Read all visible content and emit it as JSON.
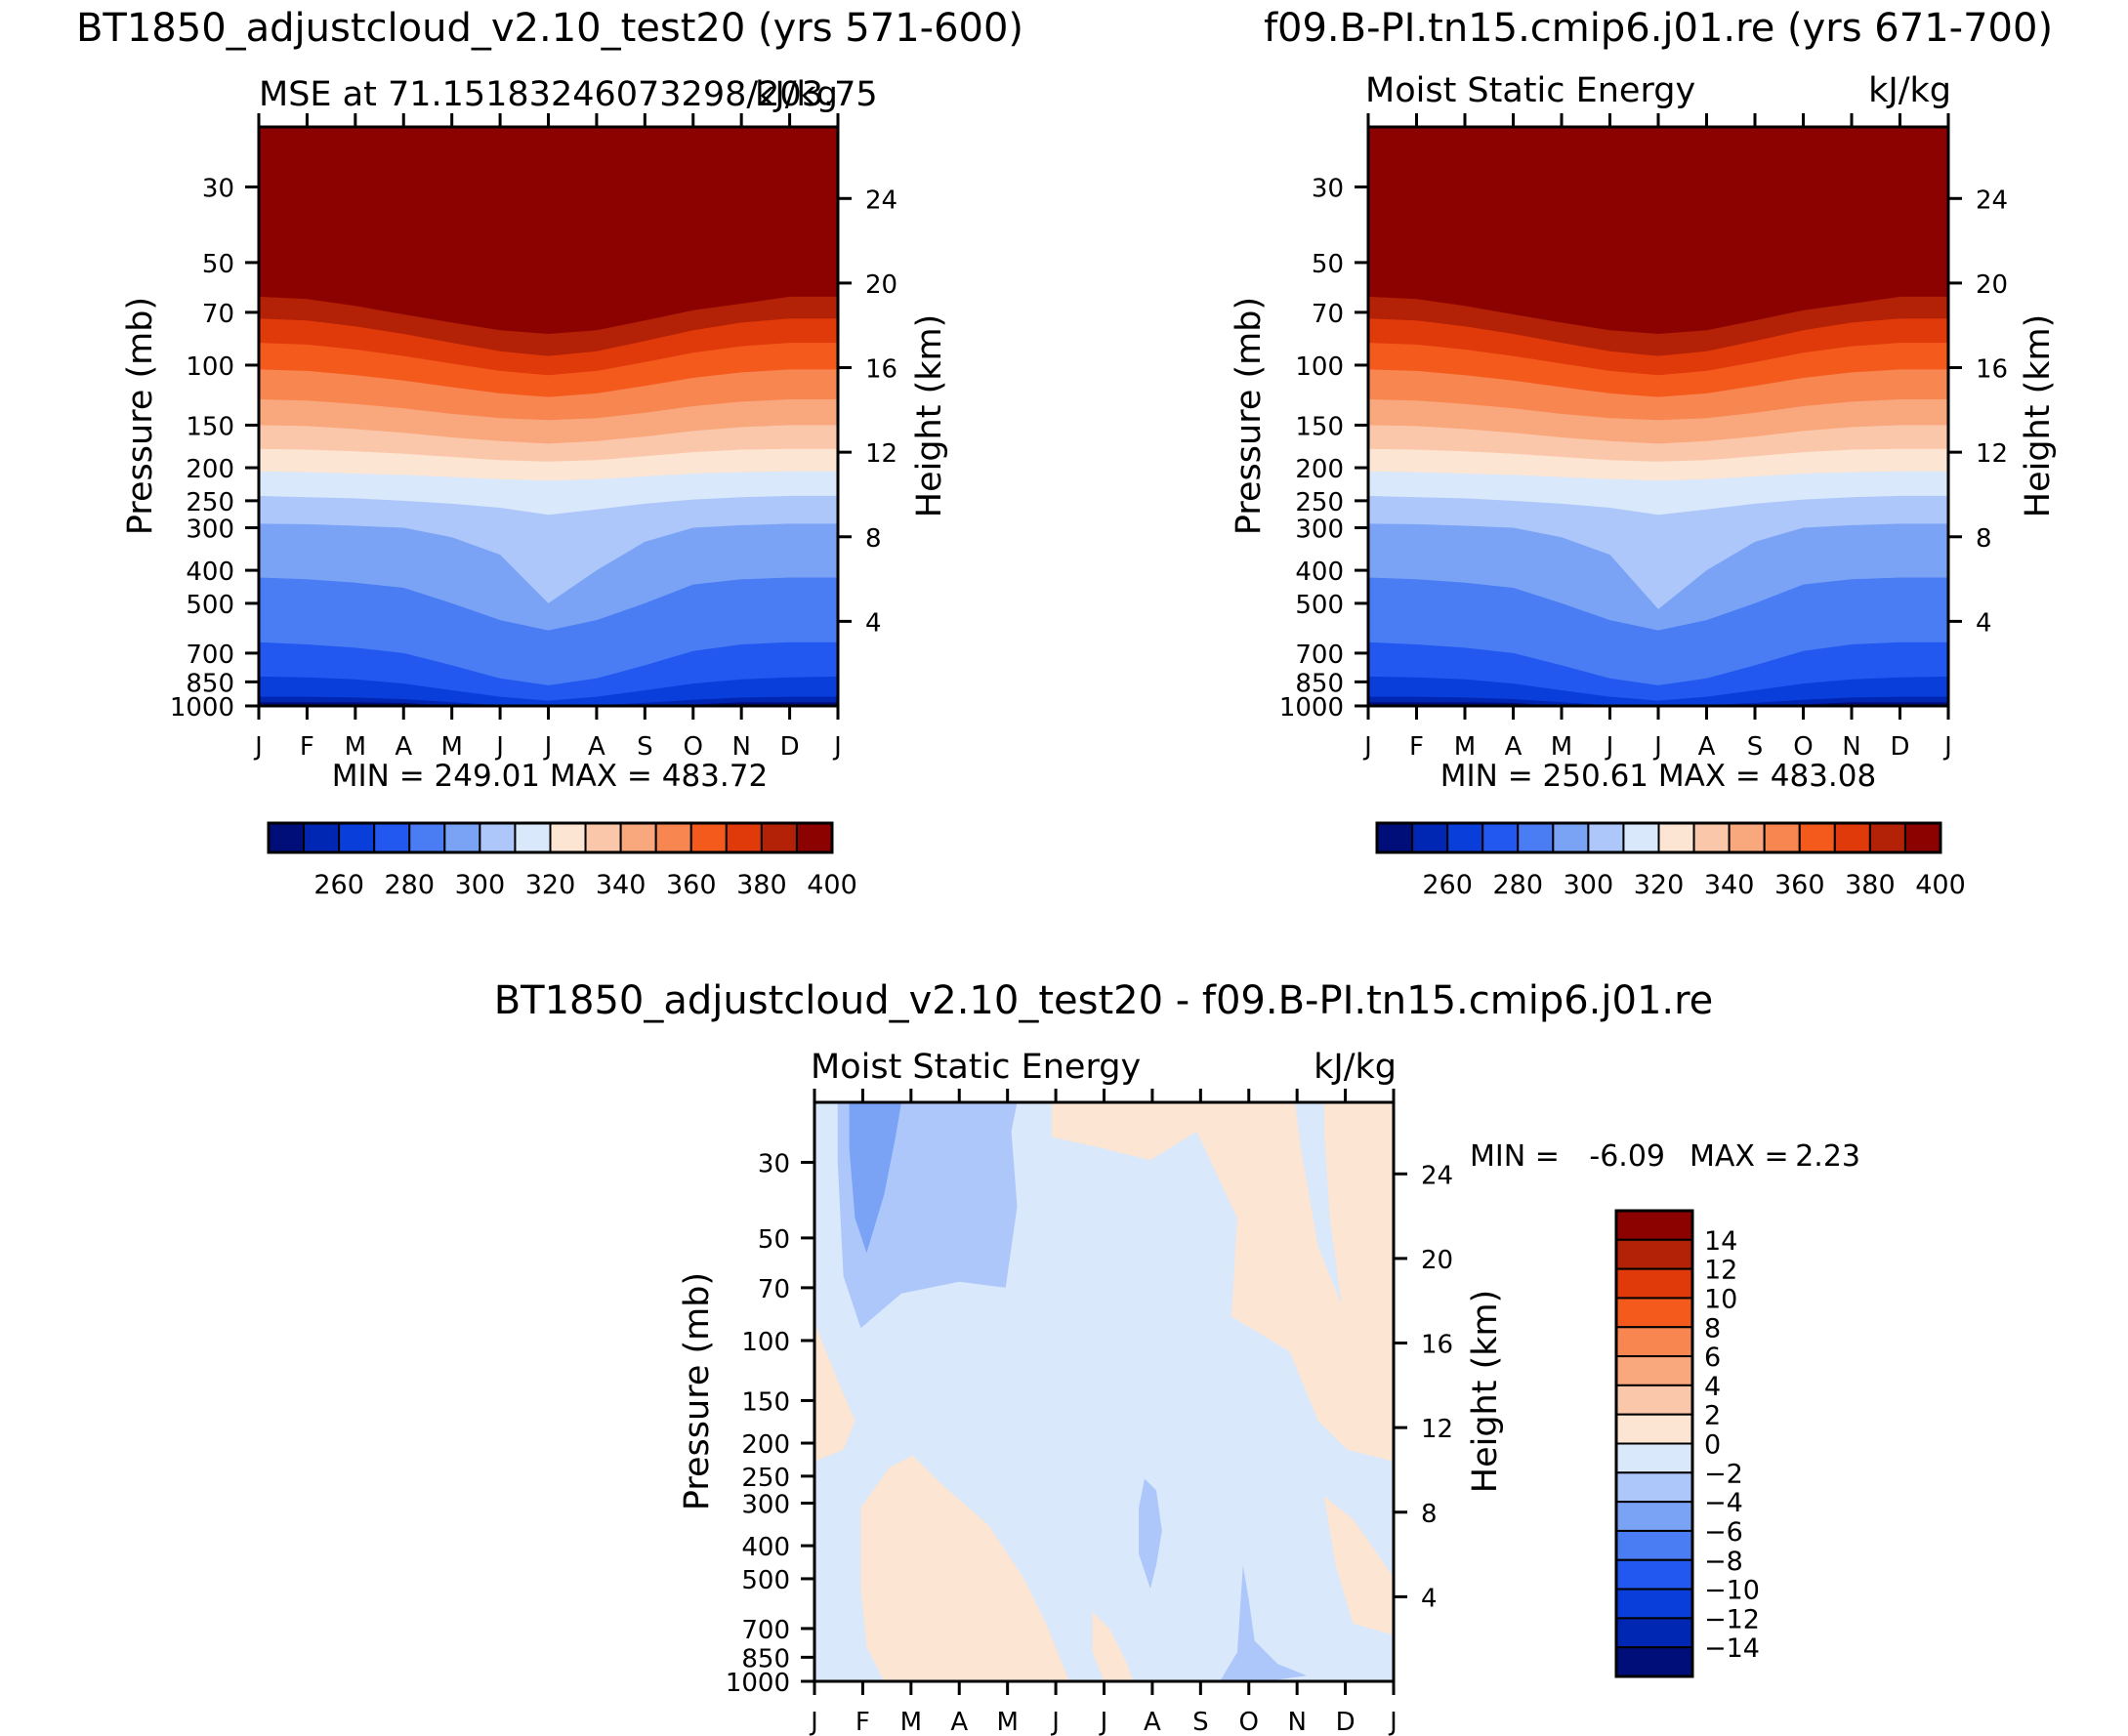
{
  "colors": {
    "mse": [
      "#000e7a",
      "#0026b4",
      "#0a3edb",
      "#2258f0",
      "#4a7df4",
      "#7aa3f6",
      "#adc7fa",
      "#d9e8fa",
      "#fde5d3",
      "#fbc7aa",
      "#f9a77d",
      "#f78651",
      "#f55a1d",
      "#e0390a",
      "#b32106",
      "#8b0200"
    ],
    "diff": [
      "#000e7a",
      "#0026b4",
      "#0a3edb",
      "#2258f0",
      "#4a7df4",
      "#7aa3f6",
      "#adc7fa",
      "#d9e8fa",
      "#fde5d3",
      "#fbc7aa",
      "#f9a77d",
      "#f78651",
      "#f55a1d",
      "#e0390a",
      "#b32106",
      "#8b0200"
    ]
  },
  "chart_data": [
    {
      "id": "top-left",
      "type": "contour",
      "title": "BT1850_adjustcloud_v2.10_test20 (yrs 571-600)",
      "left_label": "MSE at 71.15183246073298/203.75",
      "right_label": "kJ/kg",
      "xlabel": "",
      "ylabel": "Pressure (mb)",
      "y2label": "Height (km)",
      "x_ticks": [
        "J",
        "F",
        "M",
        "A",
        "M",
        "J",
        "J",
        "A",
        "S",
        "O",
        "N",
        "D",
        "J"
      ],
      "pressure_ticks": [
        "30",
        "50",
        "70",
        "100",
        "150",
        "200",
        "250",
        "300",
        "400",
        "500",
        "700",
        "850",
        "1000"
      ],
      "height_ticks": [
        "24",
        "20",
        "16",
        "12",
        "8",
        "4"
      ],
      "ylim_mb": [
        20,
        1000
      ],
      "stats": "MIN = 249.01 MAX = 483.72",
      "colorbar_labels": [
        "260",
        "280",
        "300",
        "320",
        "340",
        "360",
        "380",
        "400"
      ],
      "contour_levels": [
        250,
        260,
        270,
        280,
        290,
        300,
        310,
        320,
        330,
        340,
        350,
        360,
        370,
        380,
        390,
        400
      ],
      "boundaries_mb": {
        "months": [
          0,
          1,
          2,
          3,
          4,
          5,
          6,
          7,
          8,
          9,
          10,
          11,
          12
        ],
        "b1": [
          975,
          975,
          975,
          980,
          1000,
          1000,
          1000,
          1000,
          1000,
          990,
          975,
          975,
          975
        ],
        "b2": [
          940,
          940,
          945,
          955,
          975,
          995,
          1000,
          995,
          980,
          960,
          945,
          940,
          940
        ],
        "b3": [
          820,
          825,
          835,
          860,
          900,
          940,
          965,
          940,
          900,
          860,
          835,
          825,
          820
        ],
        "b4": [
          650,
          660,
          675,
          700,
          760,
          830,
          870,
          830,
          760,
          690,
          660,
          650,
          650
        ],
        "b5": [
          420,
          425,
          435,
          450,
          500,
          560,
          600,
          560,
          500,
          440,
          425,
          420,
          420
        ],
        "b6": [
          292,
          293,
          296,
          300,
          320,
          360,
          500,
          400,
          330,
          300,
          295,
          292,
          292
        ],
        "b7": [
          242,
          244,
          246,
          250,
          255,
          262,
          275,
          265,
          255,
          248,
          244,
          242,
          242
        ],
        "b8": [
          205,
          206,
          208,
          210,
          213,
          216,
          218,
          216,
          212,
          208,
          206,
          205,
          205
        ],
        "b9": [
          176,
          177,
          179,
          182,
          186,
          190,
          192,
          190,
          185,
          180,
          177,
          176,
          176
        ],
        "b10": [
          150,
          151,
          154,
          158,
          163,
          167,
          170,
          167,
          162,
          156,
          152,
          150,
          150
        ],
        "b11": [
          126,
          127,
          130,
          134,
          139,
          143,
          145,
          143,
          138,
          132,
          128,
          126,
          126
        ],
        "b12": [
          103,
          104,
          107,
          111,
          116,
          121,
          124,
          121,
          115,
          109,
          105,
          103,
          103
        ],
        "b13": [
          86,
          87,
          90,
          94,
          99,
          104,
          107,
          104,
          98,
          92,
          88,
          86,
          86
        ],
        "b14": [
          73,
          74,
          77,
          81,
          86,
          91,
          94,
          91,
          85,
          79,
          75,
          73,
          73
        ],
        "b15": [
          63,
          64,
          67,
          71,
          75,
          79,
          81,
          79,
          74,
          69,
          66,
          63,
          63
        ]
      }
    },
    {
      "id": "top-right",
      "type": "contour",
      "title": "f09.B-PI.tn15.cmip6.j01.re (yrs 671-700)",
      "left_label": "Moist Static Energy",
      "right_label": "kJ/kg",
      "xlabel": "",
      "ylabel": "Pressure (mb)",
      "y2label": "Height (km)",
      "x_ticks": [
        "J",
        "F",
        "M",
        "A",
        "M",
        "J",
        "J",
        "A",
        "S",
        "O",
        "N",
        "D",
        "J"
      ],
      "pressure_ticks": [
        "30",
        "50",
        "70",
        "100",
        "150",
        "200",
        "250",
        "300",
        "400",
        "500",
        "700",
        "850",
        "1000"
      ],
      "height_ticks": [
        "24",
        "20",
        "16",
        "12",
        "8",
        "4"
      ],
      "ylim_mb": [
        20,
        1000
      ],
      "stats": "MIN = 250.61 MAX = 483.08",
      "colorbar_labels": [
        "260",
        "280",
        "300",
        "320",
        "340",
        "360",
        "380",
        "400"
      ],
      "contour_levels": [
        250,
        260,
        270,
        280,
        290,
        300,
        310,
        320,
        330,
        340,
        350,
        360,
        370,
        380,
        390,
        400
      ],
      "boundaries_mb": {
        "months": [
          0,
          1,
          2,
          3,
          4,
          5,
          6,
          7,
          8,
          9,
          10,
          11,
          12
        ],
        "b1": [
          975,
          975,
          975,
          980,
          1000,
          1000,
          1000,
          1000,
          1000,
          990,
          975,
          975,
          975
        ],
        "b2": [
          940,
          940,
          945,
          955,
          975,
          995,
          1000,
          995,
          980,
          960,
          945,
          940,
          940
        ],
        "b3": [
          820,
          825,
          835,
          860,
          900,
          940,
          965,
          940,
          900,
          860,
          835,
          825,
          820
        ],
        "b4": [
          650,
          660,
          675,
          700,
          760,
          830,
          870,
          830,
          760,
          690,
          660,
          650,
          650
        ],
        "b5": [
          420,
          425,
          435,
          450,
          500,
          560,
          600,
          560,
          500,
          440,
          425,
          420,
          420
        ],
        "b6": [
          292,
          293,
          296,
          300,
          320,
          360,
          520,
          400,
          330,
          300,
          295,
          292,
          292
        ],
        "b7": [
          242,
          244,
          246,
          250,
          255,
          262,
          275,
          265,
          255,
          248,
          244,
          242,
          242
        ],
        "b8": [
          205,
          206,
          208,
          210,
          213,
          216,
          218,
          216,
          212,
          208,
          206,
          205,
          205
        ],
        "b9": [
          176,
          177,
          179,
          182,
          186,
          190,
          192,
          190,
          185,
          180,
          177,
          176,
          176
        ],
        "b10": [
          150,
          151,
          154,
          158,
          163,
          167,
          170,
          167,
          162,
          156,
          152,
          150,
          150
        ],
        "b11": [
          126,
          127,
          130,
          134,
          139,
          143,
          145,
          143,
          138,
          132,
          128,
          126,
          126
        ],
        "b12": [
          103,
          104,
          107,
          111,
          116,
          121,
          124,
          121,
          115,
          109,
          105,
          103,
          103
        ],
        "b13": [
          86,
          87,
          90,
          94,
          99,
          104,
          107,
          104,
          98,
          92,
          88,
          86,
          86
        ],
        "b14": [
          73,
          74,
          77,
          81,
          86,
          91,
          94,
          91,
          85,
          79,
          75,
          73,
          73
        ],
        "b15": [
          63,
          64,
          67,
          71,
          75,
          79,
          81,
          79,
          74,
          69,
          66,
          63,
          63
        ]
      }
    },
    {
      "id": "bottom",
      "type": "contour",
      "title": "BT1850_adjustcloud_v2.10_test20 - f09.B-PI.tn15.cmip6.j01.re",
      "left_label": "Moist Static Energy",
      "right_label": "kJ/kg",
      "xlabel": "",
      "ylabel": "Pressure (mb)",
      "y2label": "Height (km)",
      "x_ticks": [
        "J",
        "F",
        "M",
        "A",
        "M",
        "J",
        "J",
        "A",
        "S",
        "O",
        "N",
        "D",
        "J"
      ],
      "pressure_ticks": [
        "30",
        "50",
        "70",
        "100",
        "150",
        "200",
        "250",
        "300",
        "400",
        "500",
        "700",
        "850",
        "1000"
      ],
      "height_ticks": [
        "24",
        "20",
        "16",
        "12",
        "8",
        "4"
      ],
      "ylim_mb": [
        20,
        1000
      ],
      "stats_min_label": "MIN =",
      "stats_min": "-6.09",
      "stats_max_label": "MAX =",
      "stats_max": "2.23",
      "colorbar_labels": [
        "14",
        "12",
        "10",
        "8",
        "6",
        "4",
        "2",
        "0",
        "-2",
        "-4",
        "-6",
        "-8",
        "-10",
        "-12",
        "-14"
      ],
      "contour_levels": [
        -14,
        -12,
        -10,
        -8,
        -6,
        -4,
        -2,
        0,
        2,
        4,
        6,
        8,
        10,
        12,
        14
      ],
      "regions": [
        {
          "name": "neg-0-2-background",
          "range": [
            -2,
            0
          ]
        },
        {
          "name": "pos-0-2-upper-right",
          "range": [
            0,
            2
          ]
        },
        {
          "name": "pos-0-2-lower-left",
          "range": [
            0,
            2
          ]
        },
        {
          "name": "neg-2-4-upper-left",
          "range": [
            -4,
            -2
          ]
        },
        {
          "name": "neg-4-6-core",
          "range": [
            -6,
            -4
          ]
        },
        {
          "name": "neg-2-4-aug-lobe",
          "range": [
            -4,
            -2
          ]
        }
      ]
    }
  ]
}
